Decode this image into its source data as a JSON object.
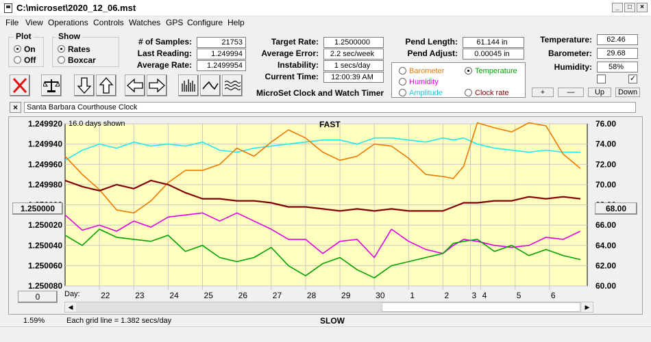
{
  "window": {
    "title": "C:\\microset\\2020_12_06.mst"
  },
  "menu": [
    "File",
    "View",
    "Operations",
    "Controls",
    "Watches",
    "GPS",
    "Configure",
    "Help"
  ],
  "plot_group": {
    "title": "Plot",
    "options": [
      {
        "label": "On",
        "selected": true
      },
      {
        "label": "Off",
        "selected": false
      }
    ]
  },
  "show_group": {
    "title": "Show",
    "options": [
      {
        "label": "Rates",
        "selected": true
      },
      {
        "label": "Boxcar",
        "selected": false
      }
    ]
  },
  "stats": {
    "samples_label": "# of Samples:",
    "samples": "21753",
    "last_reading_label": "Last Reading:",
    "last_reading": "1.249994",
    "average_rate_label": "Average Rate:",
    "average_rate": "1.2499954"
  },
  "rate": {
    "target_label": "Target Rate:",
    "target": "1.2500000",
    "avg_error_label": "Average Error:",
    "avg_error": "2.2 sec/week",
    "instability_label": "Instability:",
    "instability": "1 secs/day",
    "current_time_label": "Current Time:",
    "current_time": "12:00:39 AM"
  },
  "app_caption": "MicroSet Clock and Watch Timer",
  "pendulum": {
    "length_label": "Pend Length:",
    "length": "61.144 in",
    "adjust_label": "Pend Adjust:",
    "adjust": "0.00045 in"
  },
  "env": {
    "temperature_label": "Temperature:",
    "temperature": "62.46",
    "barometer_label": "Barometer:",
    "barometer": "29.68",
    "humidity_label": "Humidity:",
    "humidity": "58%"
  },
  "aux_options": [
    {
      "label": "Barometer",
      "color": "#f07800",
      "selected": false
    },
    {
      "label": "Temperature",
      "color": "#00a000",
      "selected": true
    },
    {
      "label": "Humidity",
      "color": "#e000e0",
      "selected": false
    },
    {
      "label": "Amplitude",
      "color": "#20c8e0",
      "selected": false
    },
    {
      "label": "Clock rate",
      "color": "#800000",
      "selected": false
    }
  ],
  "scale_buttons": {
    "plus": "+",
    "minus": "—",
    "up": "Up",
    "down": "Down"
  },
  "checkboxes": [
    {
      "checked": false
    },
    {
      "checked": true
    }
  ],
  "clock_name": "Santa Barbara Courthouse Clock",
  "close_x": "×",
  "chart_header": {
    "days_shown": "16.0 days shown",
    "fast": "FAST",
    "slow": "SLOW"
  },
  "left_center_button": "1.250000",
  "right_center_button": "68.00",
  "bottom_left_button": "0",
  "percent": "1.59%",
  "grid_note": "Each grid line = 1.382 secs/day",
  "day_label": "Day:",
  "colors": {
    "plot_bg": "#ffffc0",
    "rate": "#800000",
    "barometer": "#f07800",
    "temperature": "#00a000",
    "humidity": "#e000e0",
    "amplitude": "#20e8f0"
  },
  "chart_data": {
    "type": "line",
    "y_left": {
      "ticks": [
        "1.249920",
        "1.249940",
        "1.249960",
        "1.249980",
        "1.250000",
        "1.250020",
        "1.250040",
        "1.250060",
        "1.250080"
      ],
      "ylim": [
        1.24992,
        1.25008
      ]
    },
    "y_right": {
      "ticks": [
        "76.00",
        "74.00",
        "72.00",
        "70.00",
        "68.00",
        "66.00",
        "64.00",
        "62.00",
        "60.00"
      ],
      "ylim": [
        60,
        76
      ]
    },
    "x_days": [
      "22",
      "23",
      "24",
      "25",
      "26",
      "27",
      "28",
      "29",
      "30",
      "1",
      "2",
      "3",
      "4",
      "5",
      "6"
    ],
    "x_day_positions": [
      1,
      2,
      3,
      4,
      5,
      6,
      7,
      8,
      9,
      10,
      11,
      11.8,
      12.1,
      13.1,
      14.1
    ],
    "xlim": [
      0,
      15.2
    ],
    "series": [
      {
        "key": "rate",
        "axis": "left",
        "x": [
          0,
          0.5,
          1,
          1.5,
          2,
          2.5,
          3,
          3.5,
          4,
          4.5,
          5,
          5.5,
          6,
          6.5,
          7,
          7.5,
          8,
          8.5,
          9,
          9.5,
          10,
          10.5,
          11,
          11.3,
          11.6,
          12,
          12.5,
          13,
          13.5,
          14,
          14.5,
          15
        ],
        "values": [
          1.249976,
          1.249982,
          1.249986,
          1.24998,
          1.249984,
          1.249976,
          1.24998,
          1.249988,
          1.249994,
          1.249994,
          1.249996,
          1.249996,
          1.249998,
          1.250002,
          1.250002,
          1.250004,
          1.250006,
          1.250004,
          1.250006,
          1.250004,
          1.250006,
          1.250006,
          1.250006,
          1.250002,
          1.249998,
          1.249998,
          1.249996,
          1.249996,
          1.249992,
          1.249994,
          1.249992,
          1.249994
        ]
      },
      {
        "key": "barometer",
        "axis": "right",
        "x": [
          0,
          0.5,
          1,
          1.5,
          2,
          2.5,
          3,
          3.5,
          4,
          4.5,
          5,
          5.5,
          6,
          6.5,
          7,
          7.5,
          8,
          8.5,
          9,
          9.5,
          10,
          10.5,
          11,
          11.3,
          11.6,
          12,
          12.5,
          13,
          13.5,
          14,
          14.5,
          15
        ],
        "values": [
          72.8,
          71,
          69.5,
          67.5,
          67.2,
          68.4,
          70.2,
          71.4,
          71.4,
          72,
          73.6,
          72.8,
          74.2,
          75.4,
          74.6,
          73.2,
          72.4,
          72.8,
          74,
          73.8,
          72.6,
          71,
          70.8,
          70.6,
          71.8,
          76.1,
          75.6,
          75.2,
          76.1,
          75.8,
          73,
          71.6
        ]
      },
      {
        "key": "temperature",
        "axis": "right",
        "x": [
          0,
          0.5,
          1,
          1.5,
          2,
          2.5,
          3,
          3.5,
          4,
          4.5,
          5,
          5.5,
          6,
          6.5,
          7,
          7.5,
          8,
          8.5,
          9,
          9.5,
          10,
          10.5,
          11,
          11.3,
          11.6,
          12,
          12.5,
          13,
          13.5,
          14,
          14.5,
          15
        ],
        "values": [
          65,
          64,
          65.6,
          64.8,
          64.6,
          64.4,
          65,
          63.4,
          64,
          62.8,
          62.4,
          62.8,
          63.8,
          62,
          61,
          62.2,
          62.8,
          61.6,
          60.8,
          62,
          62.4,
          62.8,
          63.2,
          64.2,
          64.4,
          64.6,
          63.4,
          64,
          63,
          63.6,
          63,
          62.6
        ]
      },
      {
        "key": "humidity",
        "axis": "right",
        "x": [
          0,
          0.5,
          1,
          1.5,
          2,
          2.5,
          3,
          3.5,
          4,
          4.5,
          5,
          5.5,
          6,
          6.5,
          7,
          7.5,
          8,
          8.5,
          9,
          9.5,
          10,
          10.5,
          11,
          11.3,
          11.6,
          12,
          12.5,
          13,
          13.5,
          14,
          14.5,
          15
        ],
        "values": [
          67,
          65.5,
          66,
          65.4,
          66.4,
          65.8,
          66.8,
          67,
          67.2,
          66.4,
          67.2,
          66.4,
          65.6,
          64.6,
          64.6,
          63.2,
          64.4,
          64.6,
          62.8,
          65.6,
          64.4,
          63.6,
          63.2,
          64,
          64.6,
          64.4,
          64,
          63.8,
          64,
          64.8,
          64.6,
          65.4
        ]
      },
      {
        "key": "amplitude",
        "axis": "right",
        "x": [
          0,
          0.5,
          1,
          1.5,
          2,
          2.5,
          3,
          3.5,
          4,
          4.5,
          5,
          5.5,
          6,
          6.5,
          7,
          7.5,
          8,
          8.5,
          9,
          9.5,
          10,
          10.5,
          11,
          11.3,
          11.6,
          12,
          12.5,
          13,
          13.5,
          14,
          14.5,
          15
        ],
        "values": [
          72.4,
          73.4,
          74,
          73.6,
          74.2,
          73.8,
          74,
          73.8,
          74.2,
          73.4,
          73.2,
          73.6,
          73.8,
          74,
          74.2,
          74.4,
          74.4,
          74,
          74.6,
          74.6,
          74.4,
          74.2,
          74.6,
          74.4,
          74.6,
          74,
          73.6,
          73.4,
          73.2,
          73.4,
          73.2,
          73.2
        ]
      }
    ]
  }
}
